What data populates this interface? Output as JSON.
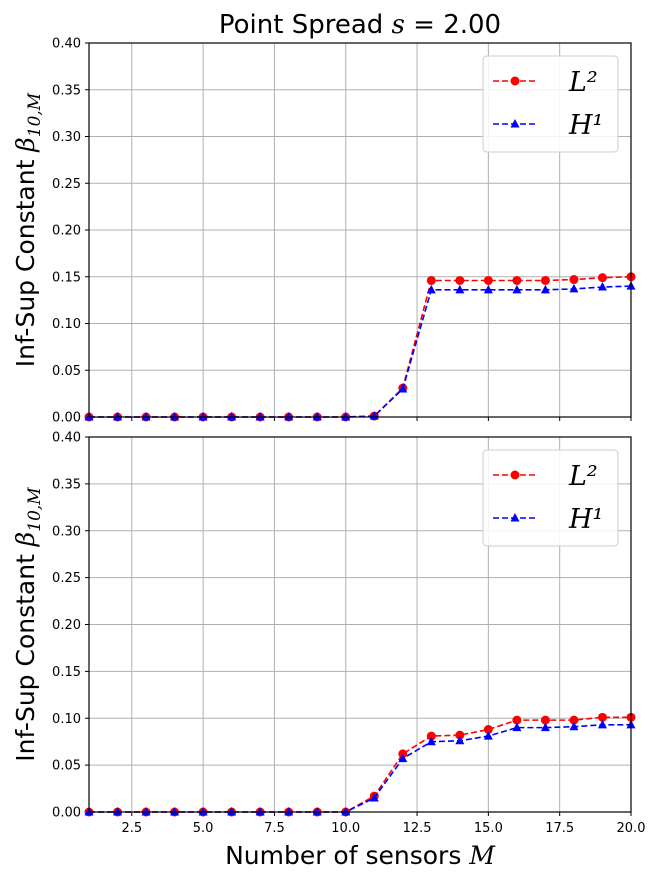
{
  "chart_data": [
    {
      "type": "line",
      "title": "Point Spread s = 2.00",
      "title_parts": {
        "prefix": "Point Spread ",
        "var": "s",
        "rest": " = 2.00"
      },
      "ylabel": "Inf-Sup Constant β10,M",
      "ylabel_parts": {
        "prefix": "Inf-Sup Constant ",
        "sym": "β",
        "sub": "10,M"
      },
      "xlabel": "",
      "xlim": [
        1,
        20
      ],
      "ylim": [
        0,
        0.4
      ],
      "yticks": [
        "0.00",
        "0.05",
        "0.10",
        "0.15",
        "0.20",
        "0.25",
        "0.30",
        "0.35",
        "0.40"
      ],
      "xticks": [],
      "xticks_labeled": false,
      "grid": true,
      "legend_position": "top-right",
      "x": [
        1,
        2,
        3,
        4,
        5,
        6,
        7,
        8,
        9,
        10,
        11,
        12,
        13,
        14,
        15,
        16,
        17,
        18,
        19,
        20
      ],
      "series": [
        {
          "name": "L²",
          "color": "#ff0000",
          "marker": "circle",
          "values": [
            0,
            0,
            0,
            0,
            0,
            0,
            0,
            0,
            0,
            0,
            0.001,
            0.031,
            0.146,
            0.146,
            0.146,
            0.146,
            0.146,
            0.147,
            0.149,
            0.15
          ]
        },
        {
          "name": "H¹",
          "color": "#0000ff",
          "marker": "triangle",
          "values": [
            0,
            0,
            0,
            0,
            0,
            0,
            0,
            0,
            0,
            0,
            0.001,
            0.03,
            0.136,
            0.136,
            0.136,
            0.136,
            0.136,
            0.137,
            0.139,
            0.14
          ]
        }
      ]
    },
    {
      "type": "line",
      "title": "",
      "ylabel": "Inf-Sup Constant β10,M",
      "ylabel_parts": {
        "prefix": "Inf-Sup Constant ",
        "sym": "β",
        "sub": "10,M"
      },
      "xlabel": "Number of sensors M",
      "xlabel_parts": {
        "prefix": "Number of sensors ",
        "var": "M"
      },
      "xlim": [
        1,
        20
      ],
      "ylim": [
        0,
        0.4
      ],
      "yticks": [
        "0.00",
        "0.05",
        "0.10",
        "0.15",
        "0.20",
        "0.25",
        "0.30",
        "0.35",
        "0.40"
      ],
      "xticks": [
        "2.5",
        "5.0",
        "7.5",
        "10.0",
        "12.5",
        "15.0",
        "17.5",
        "20.0"
      ],
      "xticks_labeled": true,
      "grid": true,
      "legend_position": "top-right",
      "x": [
        1,
        2,
        3,
        4,
        5,
        6,
        7,
        8,
        9,
        10,
        11,
        12,
        13,
        14,
        15,
        16,
        17,
        18,
        19,
        20
      ],
      "series": [
        {
          "name": "L²",
          "color": "#ff0000",
          "marker": "circle",
          "values": [
            0,
            0,
            0,
            0,
            0,
            0,
            0,
            0,
            0,
            0,
            0.017,
            0.062,
            0.081,
            0.082,
            0.088,
            0.098,
            0.098,
            0.098,
            0.101,
            0.101
          ]
        },
        {
          "name": "H¹",
          "color": "#0000ff",
          "marker": "triangle",
          "values": [
            0,
            0,
            0,
            0,
            0,
            0,
            0,
            0,
            0,
            0,
            0.015,
            0.057,
            0.075,
            0.076,
            0.081,
            0.09,
            0.09,
            0.091,
            0.093,
            0.093
          ]
        }
      ]
    }
  ]
}
